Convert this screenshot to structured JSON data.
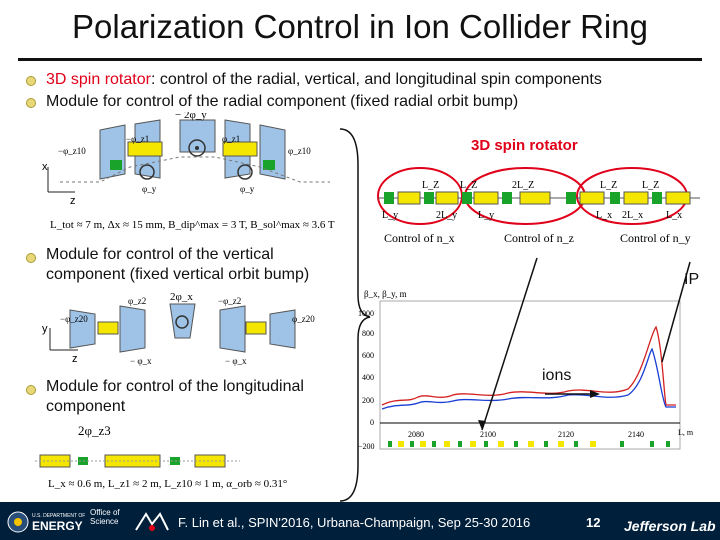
{
  "title": "Polarization Control in Ion Collider Ring",
  "bullets": {
    "b1_prefix": "3D spin rotator",
    "b1_rest": ": control of the radial, vertical, and longitudinal spin components",
    "b2": "Module for control of the radial component (fixed radial orbit bump)",
    "b3_line1": "Module for control of the vertical",
    "b3_line2": "component (fixed vertical orbit bump)",
    "b4_line1": "Module for control of the longitudinal",
    "b4_line2": "component"
  },
  "radial_module": {
    "top_label": "− 2φ_y",
    "angle_labels": [
      "−φ_z1",
      "φ_z1",
      "−φ_z1",
      "φ_z1"
    ],
    "side_labels": [
      "−φ_z10",
      "φ_z10"
    ],
    "bottom_labels": [
      "φ_y",
      "φ_y"
    ],
    "params": "L_tot ≈ 7 m,  Δx ≈ 15 mm,  B_dip^max = 3 T,  B_sol^max ≈ 3.6 T",
    "axis_labels": [
      "x",
      "z"
    ]
  },
  "vertical_module": {
    "top_label": "2φ_x",
    "angle_labels": [
      "φ_z2",
      "−φ_z2",
      "φ_z2"
    ],
    "side_labels": [
      "−φ_z20",
      "φ_z20"
    ],
    "bottom_labels": [
      "− φ_x",
      "− φ_x"
    ],
    "axis_labels": [
      "y",
      "z"
    ]
  },
  "longitudinal_module": {
    "top_label": "2φ_z3",
    "params": "L_x ≈ 0.6 m,   L_z1 ≈ 2 m,   L_z10 ≈ 1 m,   α_orb ≈ 0.31°"
  },
  "spin_rotator": {
    "label": "3D spin rotator",
    "top_labels": [
      "L_Z",
      "L_Z",
      "2L_Z",
      "L_Z",
      "L_Z"
    ],
    "bottom_labels": [
      "L_y",
      "2L_y",
      "L_y",
      "L_x",
      "2L_x",
      "L_x"
    ],
    "controls": [
      "Control of n_x",
      "Control of n_z",
      "Control of n_y"
    ]
  },
  "plot": {
    "ylabel": "β_x, β_y, m",
    "xlabel": "L, m",
    "y_ticks": [
      "1000",
      "800",
      "600",
      "400",
      "200",
      "0",
      "−200"
    ],
    "x_ticks": [
      "2080",
      "2100",
      "2120",
      "2140"
    ],
    "ip_label": "IP",
    "ions_label": "ions"
  },
  "footer": {
    "citation": "F. Lin et al., SPIN'2016, Urbana-Champaign, Sep 25-30 2016",
    "page": "12",
    "doe_label": "ENERGY",
    "doe_small": "U.S. DEPARTMENT OF",
    "office_of_science": "Office of Science",
    "jlab": "Jefferson Lab"
  },
  "colors": {
    "footer_bg": "#001f3b",
    "accent_red": "#e0001a",
    "dipole_blue": "#9ec3e6",
    "solenoid_yellow": "#f5e600",
    "quad_green": "#1aa32a"
  }
}
